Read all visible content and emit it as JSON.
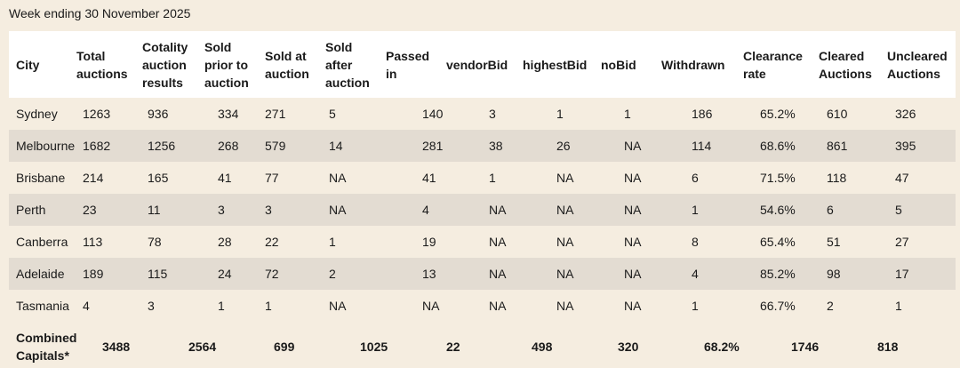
{
  "header": {
    "title": "Week ending 30 November 2025"
  },
  "table": {
    "columns": [
      "City",
      "Total auctions",
      "Cotality auction results",
      "Sold prior to auction",
      "Sold at auction",
      "Sold after auction",
      "Passed in",
      "vendorBid",
      "highestBid",
      "noBid",
      "Withdrawn",
      "Clearance rate",
      "Cleared Auctions",
      "Uncleared Auctions"
    ],
    "rows": [
      [
        "Sydney",
        1263,
        936,
        334,
        271,
        5,
        140,
        3,
        1,
        1,
        186,
        "65.2%",
        610,
        326
      ],
      [
        "Melbourne",
        1682,
        1256,
        268,
        579,
        14,
        281,
        38,
        26,
        "NA",
        114,
        "68.6%",
        861,
        395
      ],
      [
        "Brisbane",
        214,
        165,
        41,
        77,
        "NA",
        41,
        1,
        "NA",
        "NA",
        6,
        "71.5%",
        118,
        47
      ],
      [
        "Perth",
        23,
        11,
        3,
        3,
        "NA",
        4,
        "NA",
        "NA",
        "NA",
        1,
        "54.6%",
        6,
        5
      ],
      [
        "Canberra",
        113,
        78,
        28,
        22,
        1,
        19,
        "NA",
        "NA",
        "NA",
        8,
        "65.4%",
        51,
        27
      ],
      [
        "Adelaide",
        189,
        115,
        24,
        72,
        2,
        13,
        "NA",
        "NA",
        "NA",
        4,
        "85.2%",
        98,
        17
      ],
      [
        "Tasmania",
        4,
        3,
        1,
        1,
        "NA",
        "NA",
        "NA",
        "NA",
        "NA",
        1,
        "66.7%",
        2,
        1
      ]
    ],
    "footer": {
      "label": "Combined Capitals*",
      "values": [
        3488,
        2564,
        699,
        1025,
        22,
        498,
        320,
        "68.2%",
        1746,
        818
      ]
    }
  }
}
